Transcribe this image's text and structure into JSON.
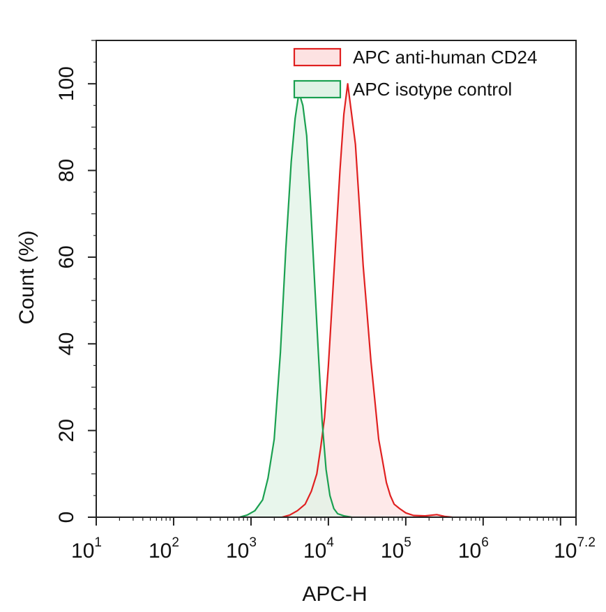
{
  "chart_data": {
    "type": "area",
    "xlabel": "APC-H",
    "ylabel": "Count  (%)",
    "x_scale": "log10",
    "xlim": [
      1,
      7.2
    ],
    "ylim": [
      0,
      110
    ],
    "x_ticks": [
      {
        "base": "10",
        "exp": "1"
      },
      {
        "base": "10",
        "exp": "2"
      },
      {
        "base": "10",
        "exp": "3"
      },
      {
        "base": "10",
        "exp": "4"
      },
      {
        "base": "10",
        "exp": "5"
      },
      {
        "base": "10",
        "exp": "6"
      },
      {
        "base": "10",
        "exp": "7.2"
      }
    ],
    "y_ticks": [
      "0",
      "20",
      "40",
      "60",
      "80",
      "100"
    ],
    "legend_position": "top-right",
    "series": [
      {
        "name": "APC anti-human CD24",
        "line_color": "#e02020",
        "fill_color": "#fde2e2",
        "points": [
          [
            3.4,
            0
          ],
          [
            3.5,
            0.5
          ],
          [
            3.6,
            1.5
          ],
          [
            3.7,
            3
          ],
          [
            3.78,
            6
          ],
          [
            3.85,
            10
          ],
          [
            3.9,
            16
          ],
          [
            3.95,
            23
          ],
          [
            4.0,
            35
          ],
          [
            4.05,
            50
          ],
          [
            4.1,
            65
          ],
          [
            4.15,
            80
          ],
          [
            4.2,
            93
          ],
          [
            4.25,
            100
          ],
          [
            4.3,
            93
          ],
          [
            4.35,
            86
          ],
          [
            4.4,
            72
          ],
          [
            4.45,
            58
          ],
          [
            4.5,
            47
          ],
          [
            4.55,
            36
          ],
          [
            4.6,
            27
          ],
          [
            4.65,
            18
          ],
          [
            4.7,
            13
          ],
          [
            4.75,
            8
          ],
          [
            4.8,
            5
          ],
          [
            4.85,
            3
          ],
          [
            4.92,
            2
          ],
          [
            5.0,
            1
          ],
          [
            5.1,
            0.4
          ],
          [
            5.25,
            0.3
          ],
          [
            5.4,
            0.6
          ],
          [
            5.5,
            0.2
          ],
          [
            5.6,
            0
          ]
        ]
      },
      {
        "name": "APC isotype control",
        "line_color": "#1aa050",
        "fill_color": "#e0f3e6",
        "points": [
          [
            2.85,
            0
          ],
          [
            2.95,
            0.5
          ],
          [
            3.05,
            1.5
          ],
          [
            3.15,
            4
          ],
          [
            3.22,
            9
          ],
          [
            3.3,
            18
          ],
          [
            3.38,
            38
          ],
          [
            3.45,
            62
          ],
          [
            3.52,
            82
          ],
          [
            3.57,
            92
          ],
          [
            3.62,
            98
          ],
          [
            3.67,
            95
          ],
          [
            3.72,
            88
          ],
          [
            3.77,
            72
          ],
          [
            3.82,
            55
          ],
          [
            3.87,
            38
          ],
          [
            3.92,
            22
          ],
          [
            3.97,
            11
          ],
          [
            4.02,
            5
          ],
          [
            4.07,
            2
          ],
          [
            4.12,
            0.8
          ],
          [
            4.2,
            0.3
          ],
          [
            4.3,
            0
          ]
        ]
      }
    ]
  }
}
